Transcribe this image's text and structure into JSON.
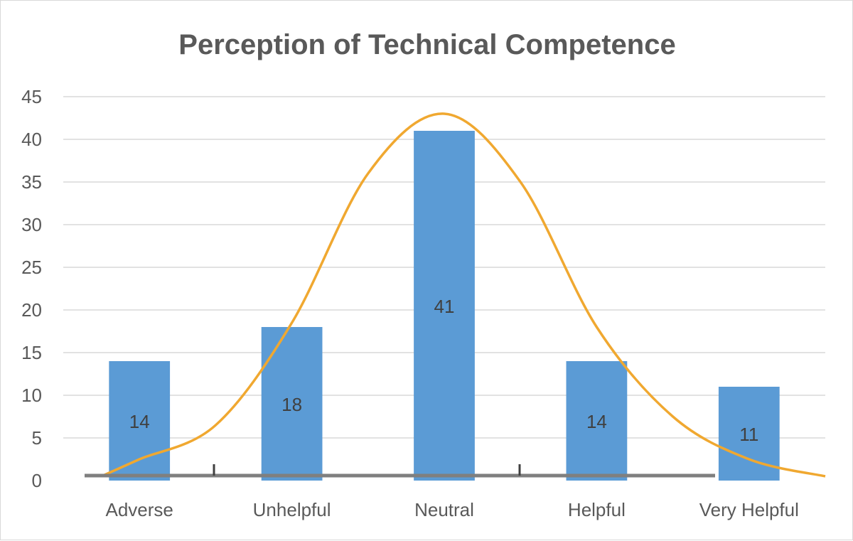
{
  "chart_data": {
    "type": "bar",
    "title": "Perception of Technical Competence",
    "categories": [
      "Adverse",
      "Unhelpful",
      "Neutral",
      "Helpful",
      "Very Helpful"
    ],
    "values": [
      14,
      18,
      41,
      14,
      11
    ],
    "data_labels": [
      "14",
      "18",
      "41",
      "14",
      "11"
    ],
    "ylim": [
      0,
      45
    ],
    "y_ticks": [
      "0",
      "5",
      "10",
      "15",
      "20",
      "25",
      "30",
      "35",
      "40",
      "45"
    ],
    "grid": true,
    "xlabel": "",
    "ylabel": "",
    "overlay": {
      "type": "line",
      "description": "smoothed normal-distribution curve",
      "x": [
        -0.25,
        0,
        0.5,
        1,
        1.5,
        2,
        2.5,
        3,
        3.5,
        4,
        4.5
      ],
      "values": [
        0.5,
        2.5,
        6.5,
        18.5,
        36,
        43,
        35,
        18,
        7.5,
        2.5,
        0.5
      ]
    },
    "colors": {
      "bar": "#5b9bd5",
      "curve": "#f0a830",
      "grid": "#d9d9d9",
      "axis": "#7f7f7f",
      "text": "#595959"
    }
  }
}
